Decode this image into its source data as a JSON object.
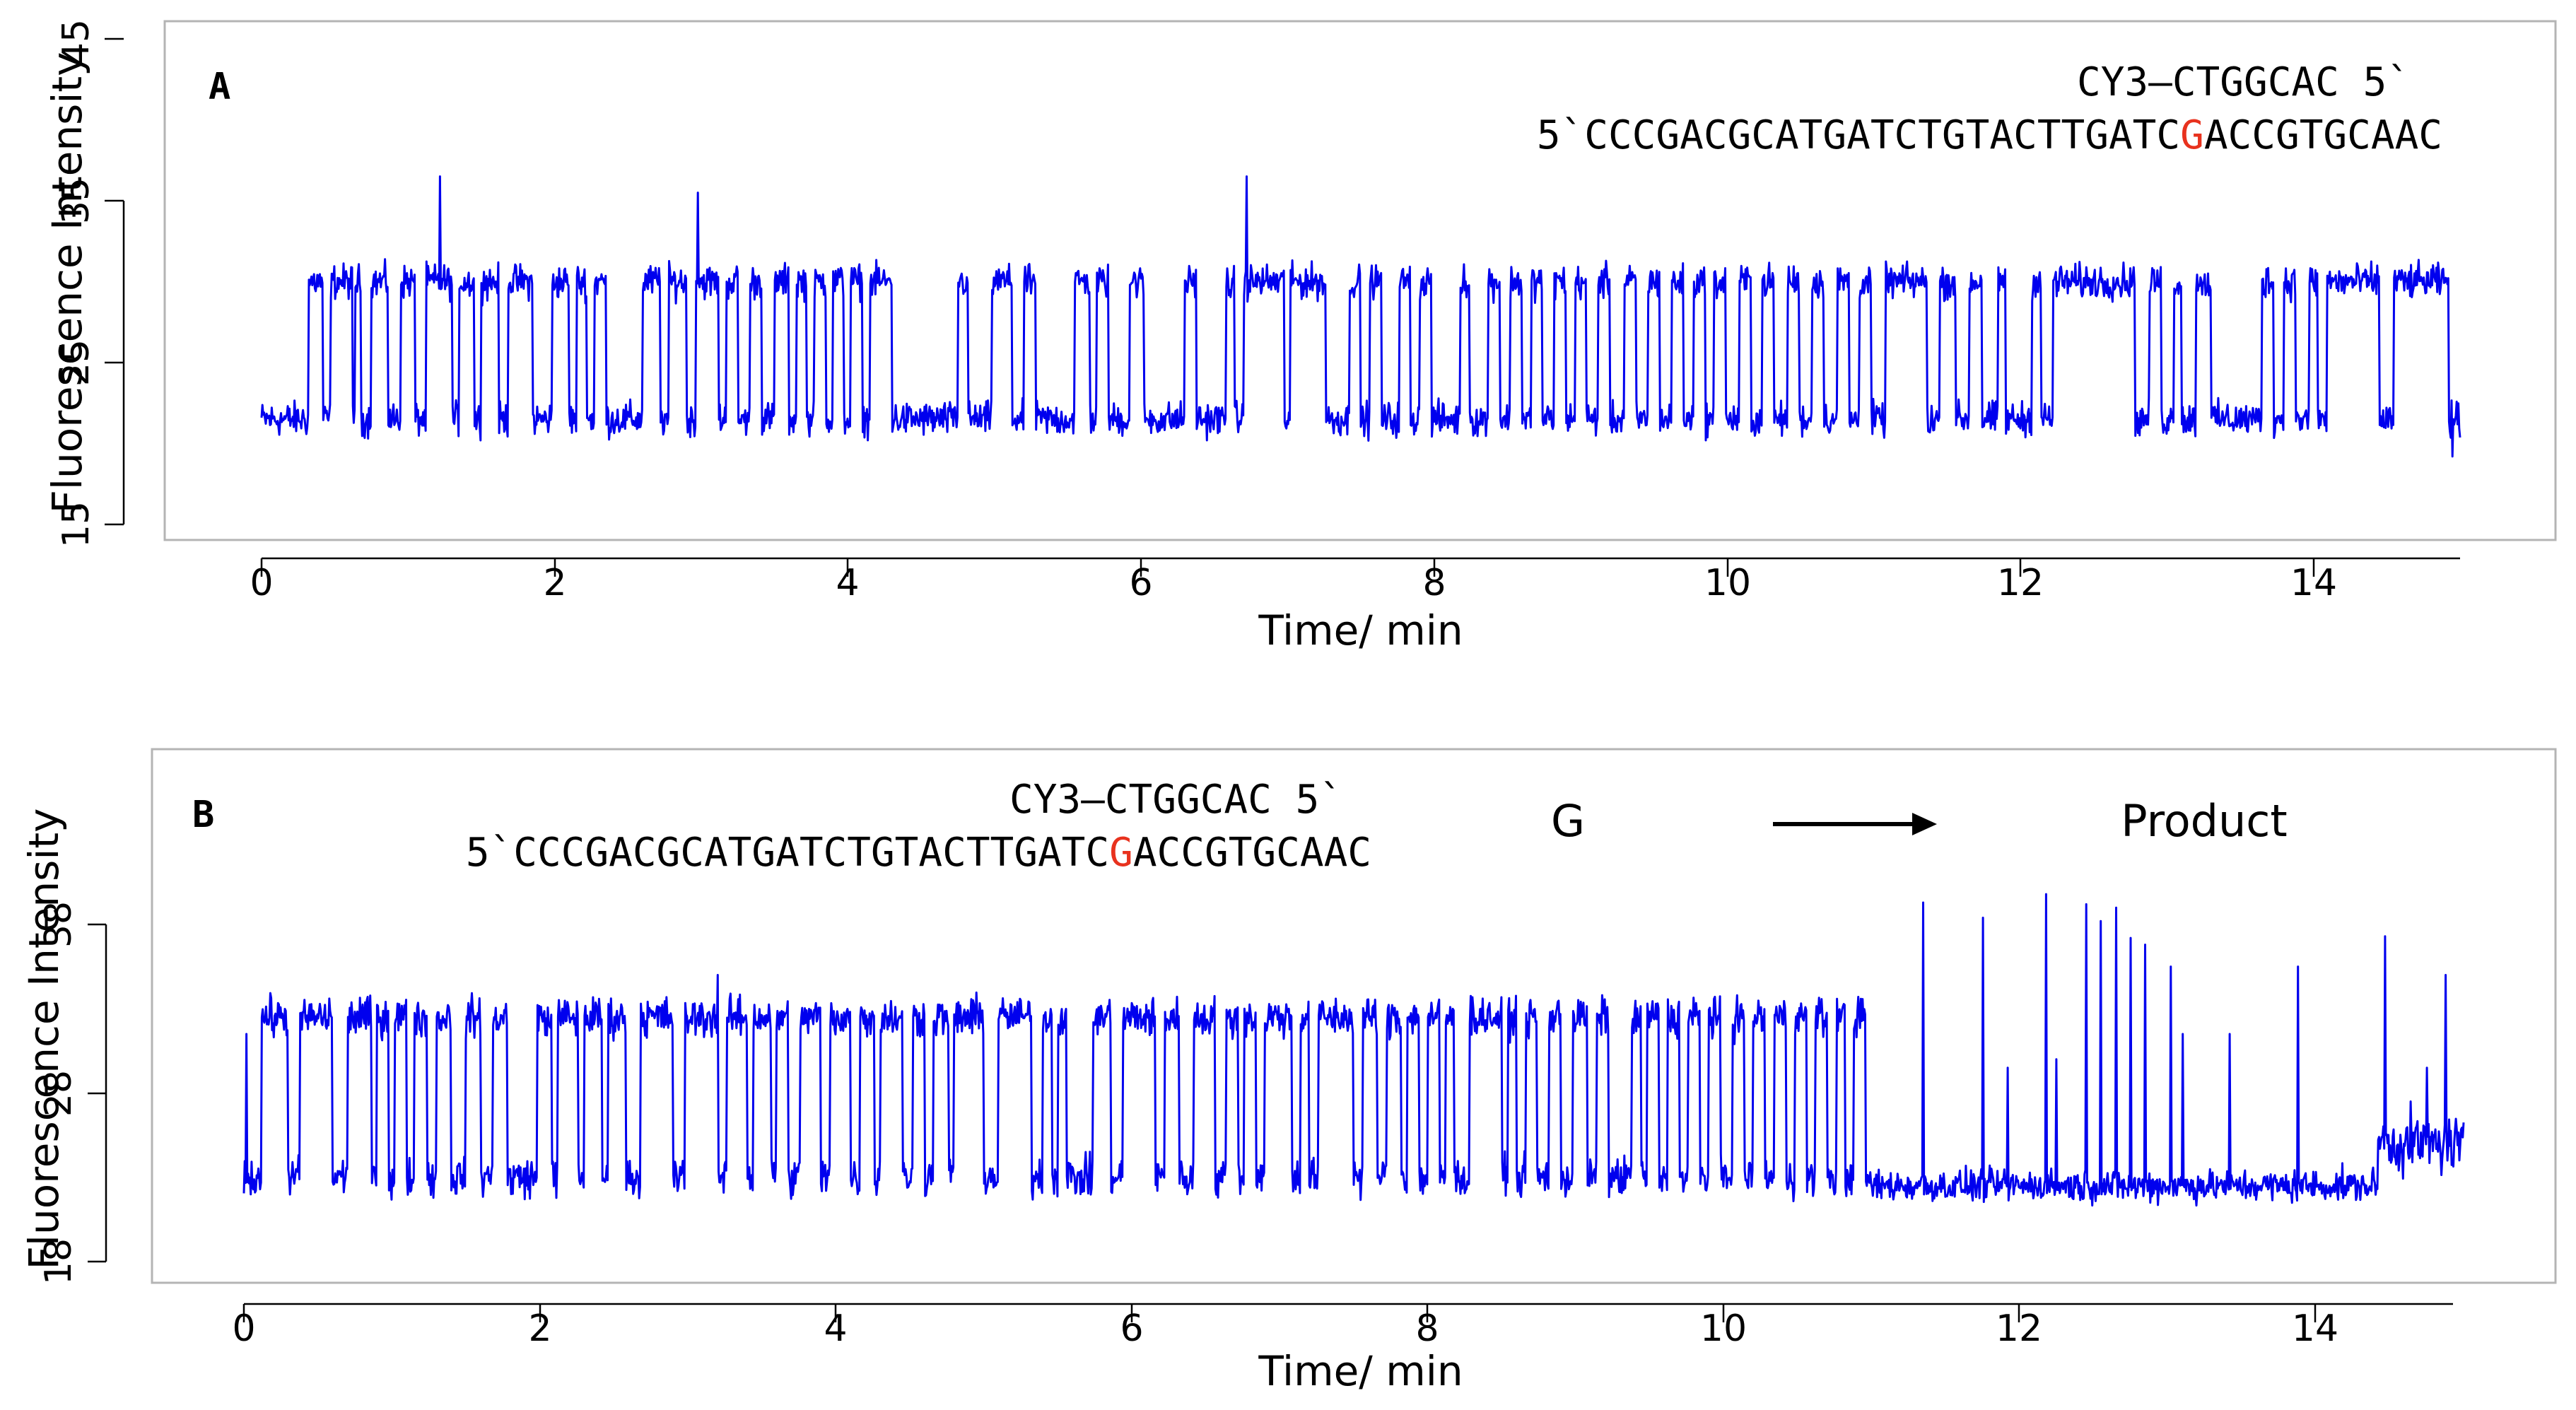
{
  "colors": {
    "trace": "#0000ee",
    "highlight": "#e8321e",
    "text": "#000000"
  },
  "chart_data": [
    {
      "type": "line",
      "panel_label": "A",
      "xlabel": "Time/ min",
      "ylabel": "Fluorescence Intensity",
      "xlim": [
        0,
        15
      ],
      "ylim": [
        15,
        45
      ],
      "x_ticks": [
        0,
        2,
        4,
        6,
        8,
        10,
        12,
        14
      ],
      "x_tick_labels": [
        "0",
        "2",
        "4",
        "6",
        "8",
        "10",
        "12",
        "14"
      ],
      "y_ticks": [
        15,
        25,
        35,
        45
      ],
      "y_tick_labels": [
        "15",
        "25",
        "35",
        "45"
      ],
      "sequence_top": "CY3—CTGGCAC 5`",
      "sequence_bottom_pre": "5`CCCGACGCATGATCTGTACTTGATC",
      "sequence_bottom_mark": "G",
      "sequence_bottom_post": "ACCGTGCAAC",
      "series": [
        {
          "name": "Fluorescence intensity",
          "low_level": 21.5,
          "high_level": 30,
          "noise": 0.9,
          "high_intervals": [
            [
              0.32,
              0.42
            ],
            [
              0.47,
              0.62
            ],
            [
              0.64,
              0.68
            ],
            [
              0.75,
              0.86
            ],
            [
              0.95,
              1.05
            ],
            [
              1.12,
              1.3
            ],
            [
              1.35,
              1.45
            ],
            [
              1.5,
              1.62
            ],
            [
              1.68,
              1.85
            ],
            [
              1.98,
              2.1
            ],
            [
              2.15,
              2.22
            ],
            [
              2.27,
              2.35
            ],
            [
              2.6,
              2.72
            ],
            [
              2.78,
              2.9
            ],
            [
              2.96,
              3.12
            ],
            [
              3.17,
              3.25
            ],
            [
              3.33,
              3.41
            ],
            [
              3.5,
              3.6
            ],
            [
              3.65,
              3.72
            ],
            [
              3.77,
              3.85
            ],
            [
              3.9,
              3.97
            ],
            [
              4.02,
              4.1
            ],
            [
              4.15,
              4.3
            ],
            [
              4.75,
              4.82
            ],
            [
              4.98,
              5.12
            ],
            [
              5.2,
              5.28
            ],
            [
              5.55,
              5.65
            ],
            [
              5.7,
              5.78
            ],
            [
              5.92,
              6.02
            ],
            [
              6.3,
              6.38
            ],
            [
              6.58,
              6.64
            ],
            [
              6.7,
              6.98
            ],
            [
              7.02,
              7.26
            ],
            [
              7.42,
              7.5
            ],
            [
              7.56,
              7.64
            ],
            [
              7.76,
              7.84
            ],
            [
              7.9,
              7.98
            ],
            [
              8.18,
              8.24
            ],
            [
              8.37,
              8.45
            ],
            [
              8.52,
              8.6
            ],
            [
              8.66,
              8.74
            ],
            [
              8.82,
              8.9
            ],
            [
              8.96,
              9.04
            ],
            [
              9.12,
              9.2
            ],
            [
              9.3,
              9.38
            ],
            [
              9.46,
              9.54
            ],
            [
              9.62,
              9.7
            ],
            [
              9.77,
              9.85
            ],
            [
              9.91,
              9.99
            ],
            [
              10.08,
              10.16
            ],
            [
              10.24,
              10.32
            ],
            [
              10.41,
              10.49
            ],
            [
              10.58,
              10.66
            ],
            [
              10.75,
              10.83
            ],
            [
              10.9,
              10.98
            ],
            [
              11.08,
              11.36
            ],
            [
              11.45,
              11.56
            ],
            [
              11.65,
              11.74
            ],
            [
              11.85,
              11.9
            ],
            [
              12.08,
              12.14
            ],
            [
              12.22,
              12.78
            ],
            [
              12.88,
              12.96
            ],
            [
              13.05,
              13.1
            ],
            [
              13.2,
              13.3
            ],
            [
              13.65,
              13.73
            ],
            [
              13.8,
              13.88
            ],
            [
              13.97,
              14.03
            ],
            [
              14.09,
              14.45
            ],
            [
              14.55,
              14.92
            ]
          ],
          "spikes": [
            {
              "x": 1.22,
              "y": 36.5
            },
            {
              "x": 2.98,
              "y": 35.5
            },
            {
              "x": 6.72,
              "y": 36.5
            },
            {
              "x": 14.95,
              "y": 19.2
            }
          ]
        }
      ]
    },
    {
      "type": "line",
      "panel_label": "B",
      "xlabel": "Time/ min",
      "ylabel": "Fluorescence Intensity",
      "xlim": [
        0,
        15
      ],
      "ylim": [
        18,
        38
      ],
      "x_ticks": [
        0,
        2,
        4,
        6,
        8,
        10,
        12,
        14
      ],
      "x_tick_labels": [
        "0",
        "2",
        "4",
        "6",
        "8",
        "10",
        "12",
        "14"
      ],
      "y_ticks": [
        18,
        28,
        38
      ],
      "y_tick_labels": [
        "18",
        "28",
        "38"
      ],
      "sequence_top": "CY3—CTGGCAC 5`",
      "sequence_bottom_pre": "5`CCCGACGCATGATCTGTACTTGATC",
      "sequence_bottom_mark": "G",
      "sequence_bottom_post": "ACCGTGCAAC",
      "annotation_left": "G",
      "annotation_right": "Product",
      "series": [
        {
          "name": "Fluorescence intensity",
          "low_level": 23,
          "high_level": 32.5,
          "noise": 1.0,
          "high_intervals": [
            [
              0.12,
              0.3
            ],
            [
              0.38,
              0.6
            ],
            [
              0.7,
              0.86
            ],
            [
              0.9,
              0.98
            ],
            [
              1.02,
              1.1
            ],
            [
              1.15,
              1.24
            ],
            [
              1.3,
              1.4
            ],
            [
              1.5,
              1.6
            ],
            [
              1.68,
              1.78
            ],
            [
              1.98,
              2.08
            ],
            [
              2.12,
              2.26
            ],
            [
              2.3,
              2.42
            ],
            [
              2.46,
              2.58
            ],
            [
              2.68,
              2.9
            ],
            [
              2.98,
              3.2
            ],
            [
              3.26,
              3.4
            ],
            [
              3.44,
              3.56
            ],
            [
              3.6,
              3.68
            ],
            [
              3.76,
              3.9
            ],
            [
              3.96,
              4.1
            ],
            [
              4.16,
              4.26
            ],
            [
              4.3,
              4.45
            ],
            [
              4.52,
              4.6
            ],
            [
              4.66,
              4.76
            ],
            [
              4.8,
              5.0
            ],
            [
              5.1,
              5.32
            ],
            [
              5.4,
              5.46
            ],
            [
              5.5,
              5.56
            ],
            [
              5.74,
              5.86
            ],
            [
              5.94,
              6.16
            ],
            [
              6.22,
              6.32
            ],
            [
              6.42,
              6.56
            ],
            [
              6.64,
              6.72
            ],
            [
              6.76,
              6.84
            ],
            [
              6.9,
              7.08
            ],
            [
              7.14,
              7.2
            ],
            [
              7.26,
              7.5
            ],
            [
              7.56,
              7.66
            ],
            [
              7.72,
              7.82
            ],
            [
              7.86,
              7.94
            ],
            [
              8.0,
              8.08
            ],
            [
              8.12,
              8.18
            ],
            [
              8.28,
              8.5
            ],
            [
              8.54,
              8.6
            ],
            [
              8.66,
              8.74
            ],
            [
              8.82,
              8.9
            ],
            [
              8.98,
              9.08
            ],
            [
              9.14,
              9.22
            ],
            [
              9.38,
              9.44
            ],
            [
              9.48,
              9.56
            ],
            [
              9.62,
              9.7
            ],
            [
              9.76,
              9.84
            ],
            [
              9.9,
              9.98
            ],
            [
              10.06,
              10.14
            ],
            [
              10.2,
              10.28
            ],
            [
              10.34,
              10.42
            ],
            [
              10.48,
              10.56
            ],
            [
              10.62,
              10.7
            ],
            [
              10.76,
              10.82
            ],
            [
              10.88,
              10.96
            ]
          ],
          "spikes": [
            {
              "x": 0.02,
              "y": 31.5
            },
            {
              "x": 3.2,
              "y": 35
            },
            {
              "x": 11.35,
              "y": 39.3
            },
            {
              "x": 11.75,
              "y": 38.4
            },
            {
              "x": 11.92,
              "y": 29.5
            },
            {
              "x": 12.18,
              "y": 39.8
            },
            {
              "x": 12.25,
              "y": 30
            },
            {
              "x": 12.45,
              "y": 39.2
            },
            {
              "x": 12.55,
              "y": 38.2
            },
            {
              "x": 12.65,
              "y": 39
            },
            {
              "x": 12.75,
              "y": 37.2
            },
            {
              "x": 12.85,
              "y": 36.8
            },
            {
              "x": 13.02,
              "y": 35.5
            },
            {
              "x": 13.1,
              "y": 31.5
            },
            {
              "x": 13.42,
              "y": 31.5
            },
            {
              "x": 13.88,
              "y": 35.5
            },
            {
              "x": 14.47,
              "y": 37.3
            },
            {
              "x": 14.88,
              "y": 35
            },
            {
              "x": 14.75,
              "y": 29.5
            }
          ],
          "after_change": {
            "start": 10.98,
            "level": 22.5,
            "noise": 0.8,
            "elevated_start": 14.42,
            "elevated_level": 25,
            "elevated_noise": 1.5
          }
        }
      ]
    }
  ]
}
